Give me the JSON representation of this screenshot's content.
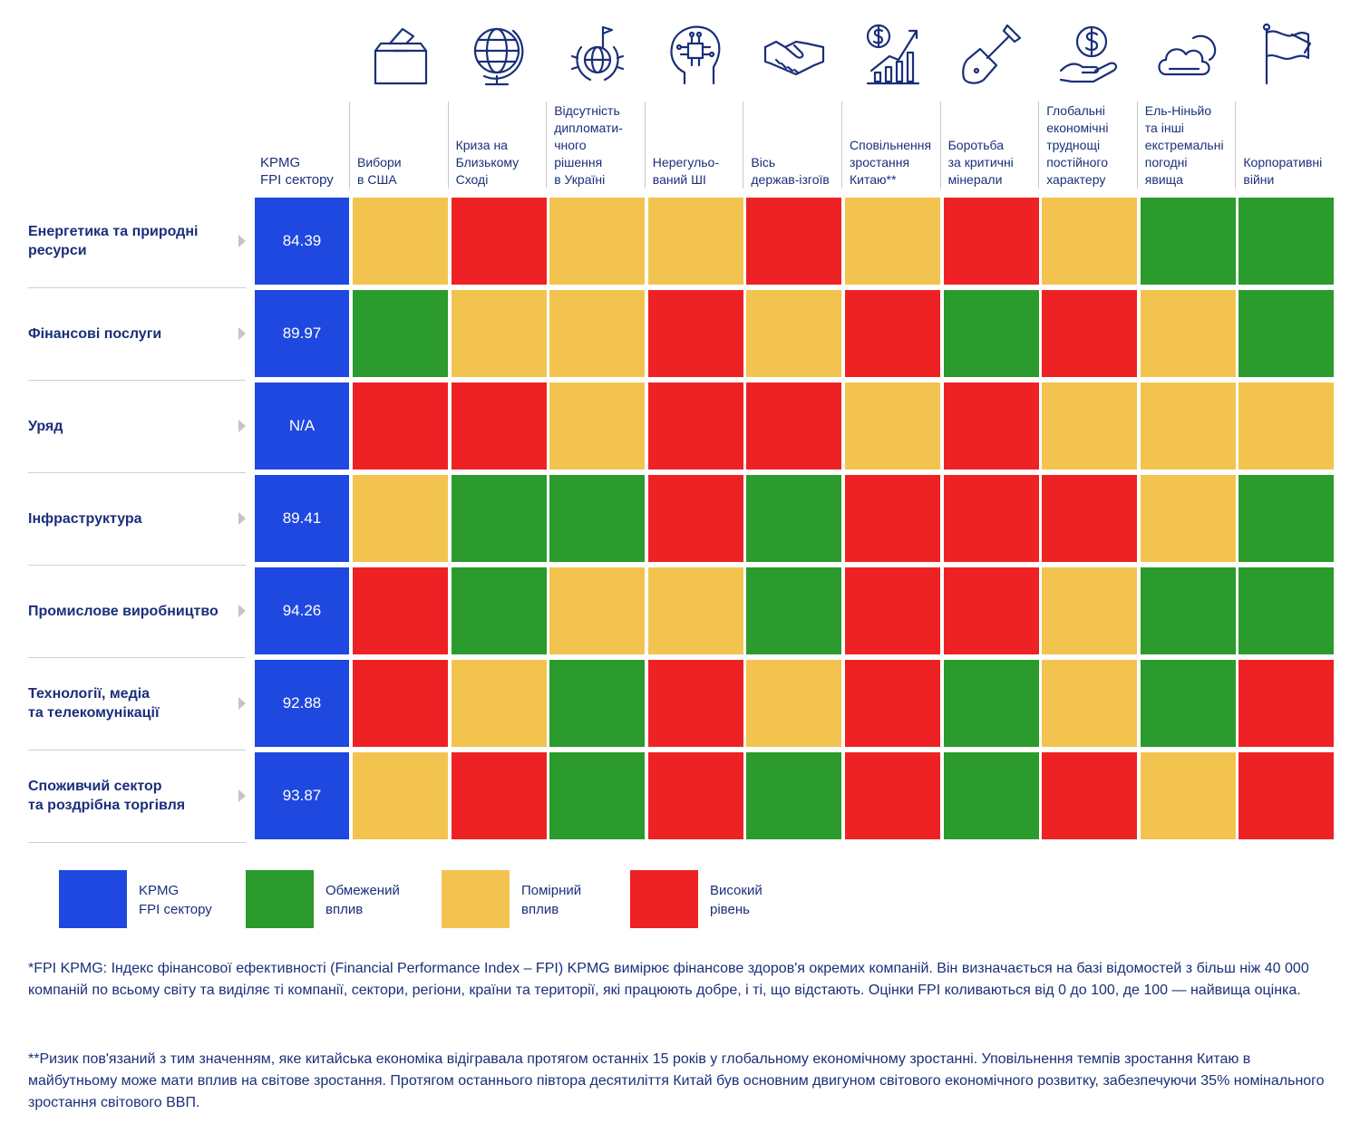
{
  "fpi_header": "KPMG\nFPI сектору",
  "columns": [
    {
      "label": "Вибори\nв США",
      "icon": "ballot-box-icon"
    },
    {
      "label": "Криза на\nБлизькому\nСході",
      "icon": "globe-icon"
    },
    {
      "label": "Відсутність\nдипломати-\nчного\nрішення\nв Україні",
      "icon": "peace-globe-laurel-icon"
    },
    {
      "label": "Нерегульо-\nваний ШІ",
      "icon": "ai-head-icon"
    },
    {
      "label": "Вісь\nдержав-ізгоїв",
      "icon": "handshake-icon"
    },
    {
      "label": "Сповільнення\nзростання\nКитаю**",
      "icon": "growth-chart-dollar-icon"
    },
    {
      "label": "Боротьба\nза критичні\nмінерали",
      "icon": "shovel-icon"
    },
    {
      "label": "Глобальні\nекономічні\nтруднощі\nпостійного\nхарактеру",
      "icon": "hand-dollar-icon"
    },
    {
      "label": "Ель-Ніньйо\nта інші\nекстремальні\nпогодні\nявища",
      "icon": "cloud-sun-icon"
    },
    {
      "label": "Корпоративні\nвійни",
      "icon": "flag-icon"
    }
  ],
  "rows": [
    {
      "sector": "Енергетика та природні\nресурси",
      "fpi": "84.39",
      "impacts": [
        "Y",
        "R",
        "Y",
        "Y",
        "R",
        "Y",
        "R",
        "Y",
        "G",
        "G"
      ]
    },
    {
      "sector": "Фінансові послуги",
      "fpi": "89.97",
      "impacts": [
        "G",
        "Y",
        "Y",
        "R",
        "Y",
        "R",
        "G",
        "R",
        "Y",
        "G"
      ]
    },
    {
      "sector": "Уряд",
      "fpi": "N/A",
      "impacts": [
        "R",
        "R",
        "Y",
        "R",
        "R",
        "Y",
        "R",
        "Y",
        "Y",
        "Y"
      ]
    },
    {
      "sector": "Інфраструктура",
      "fpi": "89.41",
      "impacts": [
        "Y",
        "G",
        "G",
        "R",
        "G",
        "R",
        "R",
        "R",
        "Y",
        "G"
      ]
    },
    {
      "sector": "Промислове виробництво",
      "fpi": "94.26",
      "impacts": [
        "R",
        "G",
        "Y",
        "Y",
        "G",
        "R",
        "R",
        "Y",
        "G",
        "G"
      ]
    },
    {
      "sector": "Технології, медіа\nта телекомунікації",
      "fpi": "92.88",
      "impacts": [
        "R",
        "Y",
        "G",
        "R",
        "Y",
        "R",
        "G",
        "Y",
        "G",
        "R"
      ]
    },
    {
      "sector": "Споживчий сектор\nта роздрібна торгівля",
      "fpi": "93.87",
      "impacts": [
        "Y",
        "R",
        "G",
        "R",
        "G",
        "R",
        "G",
        "R",
        "Y",
        "R"
      ]
    }
  ],
  "colors": {
    "G": "#2a9b2c",
    "Y": "#f2c44f",
    "R": "#ee2224",
    "fpi": "#1f48e0"
  },
  "legend": [
    {
      "label": "KPMG\nFPI сектору",
      "color": "#1f48e0"
    },
    {
      "label": "Обмежений\nвплив",
      "color": "#2a9b2c"
    },
    {
      "label": "Помірний\nвплив",
      "color": "#f2c44f"
    },
    {
      "label": "Високий\nрівень",
      "color": "#ee2224"
    }
  ],
  "notes": [
    "*FPI KPMG: Індекс фінансової ефективності (Financial Performance Index – FPI) KPMG вимірює фінансове здоров'я окремих компаній. Він визначається на базі відомостей з більш ніж 40 000 компаній по всьому світу та виділяє ті компанії, сектори, регіони, країни та території, які працюють добре, і ті, що відстають. Оцінки FPI коливаються від 0 до 100, де 100 — найвища оцінка.",
    "**Ризик пов'язаний з тим значенням, яке китайська економіка відігравала протягом останніх 15 років у глобальному економічному зростанні. Уповільнення темпів зростання Китаю в майбутньому може мати вплив на світове зростання. Протягом останнього півтора десятиліття Китай був основним двигуном світового економічного розвитку, забезпечуючи 35% номінального зростання світового ВВП."
  ],
  "chart_data": {
    "type": "heatmap",
    "title": "",
    "categories": [
      "Вибори в США",
      "Криза на Близькому Сході",
      "Відсутність дипломатичного рішення в Україні",
      "Нерегульований ШІ",
      "Вісь держав-ізгоїв",
      "Сповільнення зростання Китаю**",
      "Боротьба за критичні мінерали",
      "Глобальні економічні труднощі постійного характеру",
      "Ель-Ніньйо та інші екстремальні погодні явища",
      "Корпоративні війни"
    ],
    "legend_levels": {
      "G": "Обмежений вплив",
      "Y": "Помірний вплив",
      "R": "Високий рівень"
    },
    "legend_position": "bottom"
  }
}
